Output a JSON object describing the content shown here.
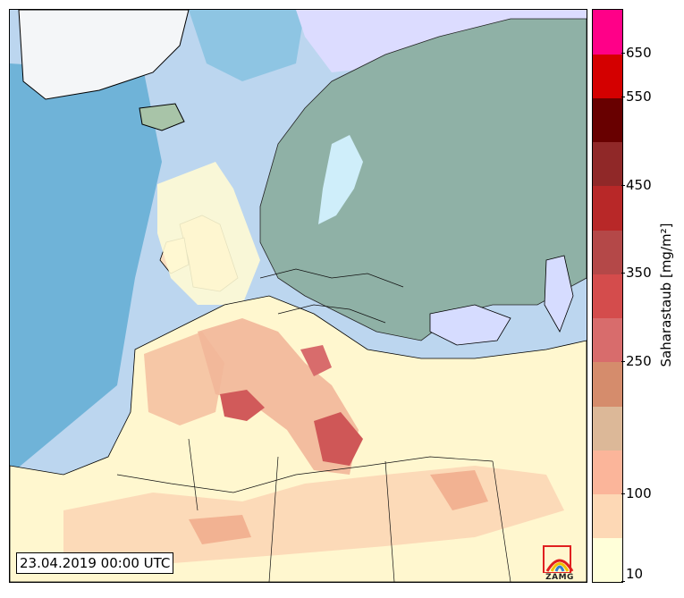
{
  "map": {
    "timestamp": "23.04.2019 00:00 UTC",
    "logo_text": "ZAMG"
  },
  "colorbar": {
    "title": "Saharastaub [mg/m²]",
    "labels": [
      "10",
      "100",
      "250",
      "350",
      "450",
      "550",
      "650"
    ],
    "colors": [
      "#ffffd9",
      "#fdd8b5",
      "#fbb59a",
      "#dcb898",
      "#d58c6c",
      "#d86c6c",
      "#d44c4c",
      "#b44848",
      "#b82828",
      "#902828",
      "#680000",
      "#d40000",
      "#ff0088"
    ],
    "color_meaning": "dust load classes from low (bottom) to high (top)"
  }
}
